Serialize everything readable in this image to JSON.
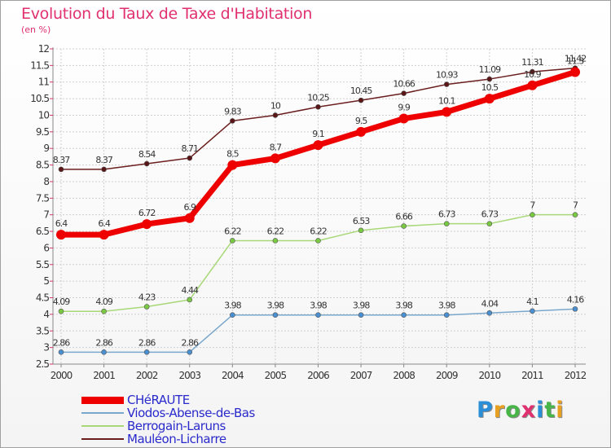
{
  "header": {
    "title": "Evolution du Taux de Taxe d'Habitation",
    "unit": "(en %)"
  },
  "brand": {
    "text": "Proxiti",
    "colors": [
      "#2b8fd8",
      "#e8a020",
      "#47b548",
      "#e03070",
      "#2b8fd8",
      "#47b548",
      "#e8a020"
    ]
  },
  "colors": {
    "background": "#ffffff",
    "grid": "#cfcfcf",
    "title": "#e03070",
    "legend_text": "#2a2acc"
  },
  "chart_data": {
    "type": "line",
    "x": [
      "2000",
      "2001",
      "2002",
      "2003",
      "2004",
      "2005",
      "2006",
      "2007",
      "2008",
      "2009",
      "2010",
      "2011",
      "2012"
    ],
    "ylim": [
      2.5,
      12
    ],
    "yticks": [
      "2.5",
      "3",
      "3.5",
      "4",
      "4.5",
      "5",
      "5.5",
      "6",
      "6.5",
      "7",
      "7.5",
      "8",
      "8.5",
      "9",
      "9.5",
      "10",
      "10.5",
      "11",
      "11.5",
      "12"
    ],
    "grid": true,
    "legend_position": "bottom-left",
    "series": [
      {
        "name": "Mauléon-Licharre",
        "color": "#6b1e1e",
        "marker": "#5a1616",
        "width": 1.5,
        "radius": 3,
        "values": [
          8.37,
          8.37,
          8.54,
          8.71,
          9.83,
          10,
          10.25,
          10.45,
          10.66,
          10.93,
          11.09,
          11.31,
          11.42
        ],
        "labels": [
          "8.37",
          "8.37",
          "8.54",
          "8.71",
          "9.83",
          "10",
          "10.25",
          "10.45",
          "10.66",
          "10.93",
          "11.09",
          "11.31",
          "11.42"
        ]
      },
      {
        "name": "Berrogain-Laruns",
        "color": "#a8d878",
        "marker": "#7ac943",
        "width": 1.5,
        "radius": 3,
        "values": [
          4.09,
          4.09,
          4.23,
          4.44,
          6.22,
          6.22,
          6.22,
          6.53,
          6.66,
          6.73,
          6.73,
          7,
          7
        ],
        "labels": [
          "4.09",
          "4.09",
          "4.23",
          "4.44",
          "6.22",
          "6.22",
          "6.22",
          "6.53",
          "6.66",
          "6.73",
          "6.73",
          "7",
          "7"
        ]
      },
      {
        "name": "Viodos-Abense-de-Bas",
        "color": "#7aa7cc",
        "marker": "#4a8fd0",
        "width": 1.5,
        "radius": 3,
        "values": [
          2.86,
          2.86,
          2.86,
          2.86,
          3.98,
          3.98,
          3.98,
          3.98,
          3.98,
          3.98,
          4.04,
          4.1,
          4.16
        ],
        "labels": [
          "2.86",
          "2.86",
          "2.86",
          "2.86",
          "3.98",
          "3.98",
          "3.98",
          "3.98",
          "3.98",
          "3.98",
          "4.04",
          "4.1",
          "4.16"
        ]
      },
      {
        "name": "CHéRAUTE",
        "color": "#ee0000",
        "marker": "#ee0000",
        "width": 7,
        "radius": 6,
        "values": [
          6.4,
          6.4,
          6.72,
          6.9,
          8.5,
          8.7,
          9.1,
          9.5,
          9.9,
          10.1,
          10.5,
          10.9,
          11.3
        ],
        "labels": [
          "6.4",
          "6.4",
          "6.72",
          "6.9",
          "8.5",
          "8.7",
          "9.1",
          "9.5",
          "9.9",
          "10.1",
          "10.5",
          "10.9",
          "11.3"
        ]
      }
    ],
    "legend_order": [
      "CHéRAUTE",
      "Viodos-Abense-de-Bas",
      "Berrogain-Laruns",
      "Mauléon-Licharre"
    ]
  }
}
